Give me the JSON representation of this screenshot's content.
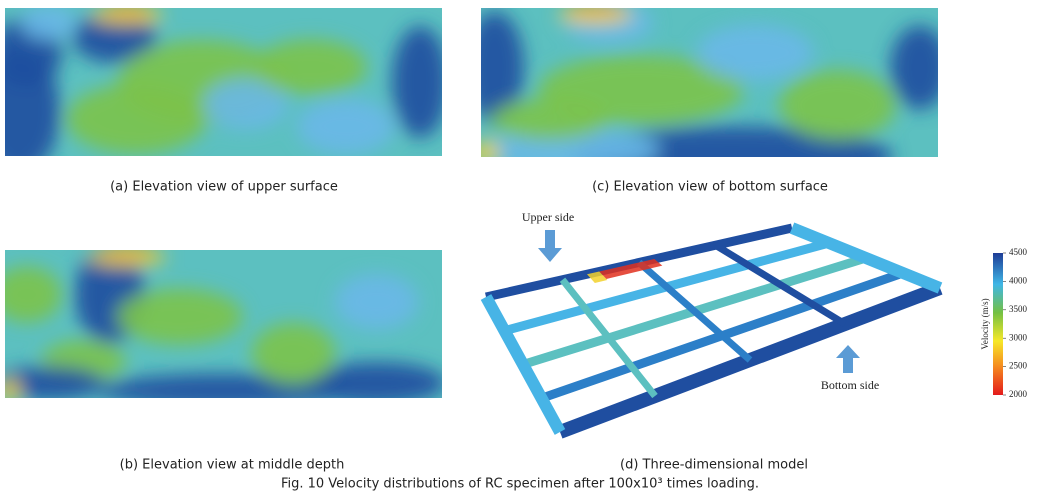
{
  "panels": {
    "a": {
      "caption": "(a) Elevation view of upper surface"
    },
    "b": {
      "caption": "(b) Elevation view at middle depth"
    },
    "c": {
      "caption": "(c) Elevation view of bottom surface"
    },
    "d": {
      "caption": "(d) Three-dimensional model",
      "upper_label": "Upper side",
      "bottom_label": "Bottom side"
    }
  },
  "colorbar": {
    "label": "Velocity (m/s)",
    "range": [
      2000,
      4500
    ],
    "ticks": [
      4500,
      4000,
      3500,
      3000,
      2500,
      2000
    ]
  },
  "figure_caption": "Fig. 10 Velocity distributions of RC specimen after 100x10³ times loading."
}
